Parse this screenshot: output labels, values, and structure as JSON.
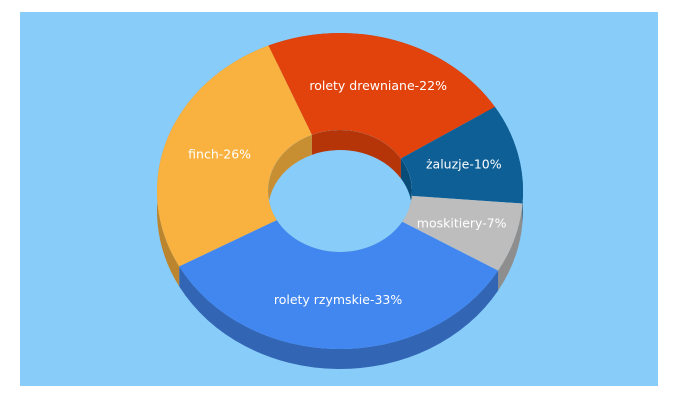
{
  "chart_data": {
    "type": "pie",
    "values": [
      22,
      10,
      7,
      33,
      26
    ],
    "value_labels": [
      "rolety drewniane-22%",
      "żaluzje-10%",
      "moskitiery-7%",
      "rolety rzymskie-33%",
      "finch-26%"
    ],
    "colors": [
      "#e2420b",
      "#0d5f96",
      "#bdbdbd",
      "#4287f0",
      "#f9b13f"
    ],
    "donut": true
  }
}
